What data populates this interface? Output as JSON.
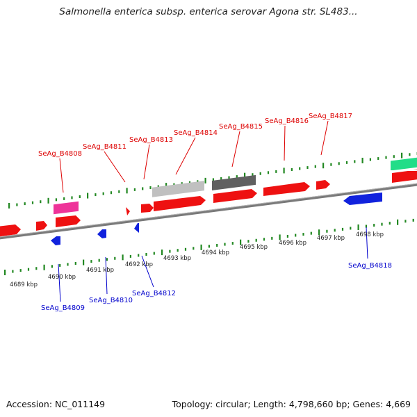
{
  "title": "Salmonella enterica subsp. enterica serovar Agona str. SL483...",
  "footer": {
    "accession": "Accession: NC_011149",
    "summary": "Topology: circular; Length: 4,798,660 bp; Genes: 4,669"
  },
  "colors": {
    "forward_cds": "#ee1111",
    "reverse_cds": "#1122dd",
    "pink_feature": "#ee3399",
    "gray_feature": "#c0c0c0",
    "darkgray_feature": "#606060",
    "teal_feature": "#22dd88",
    "tick": "#228822",
    "backbone": "#888888",
    "label_forward": "#dd0000",
    "label_reverse": "#0000cc"
  },
  "kbp_labels": [
    "4689 kbp",
    "4690 kbp",
    "4691 kbp",
    "4692 kbp",
    "4693 kbp",
    "4694 kbp",
    "4695 kbp",
    "4696 kbp",
    "4697 kbp",
    "4698 kbp"
  ],
  "upper_labels": [
    "SeAg_B4808",
    "SeAg_B4811",
    "SeAg_B4813",
    "SeAg_B4814",
    "SeAg_B4815",
    "SeAg_B4816",
    "SeAg_B4817"
  ],
  "lower_labels": [
    "SeAg_B4809",
    "SeAg_B4810",
    "SeAg_B4812",
    "SeAg_B4818"
  ]
}
